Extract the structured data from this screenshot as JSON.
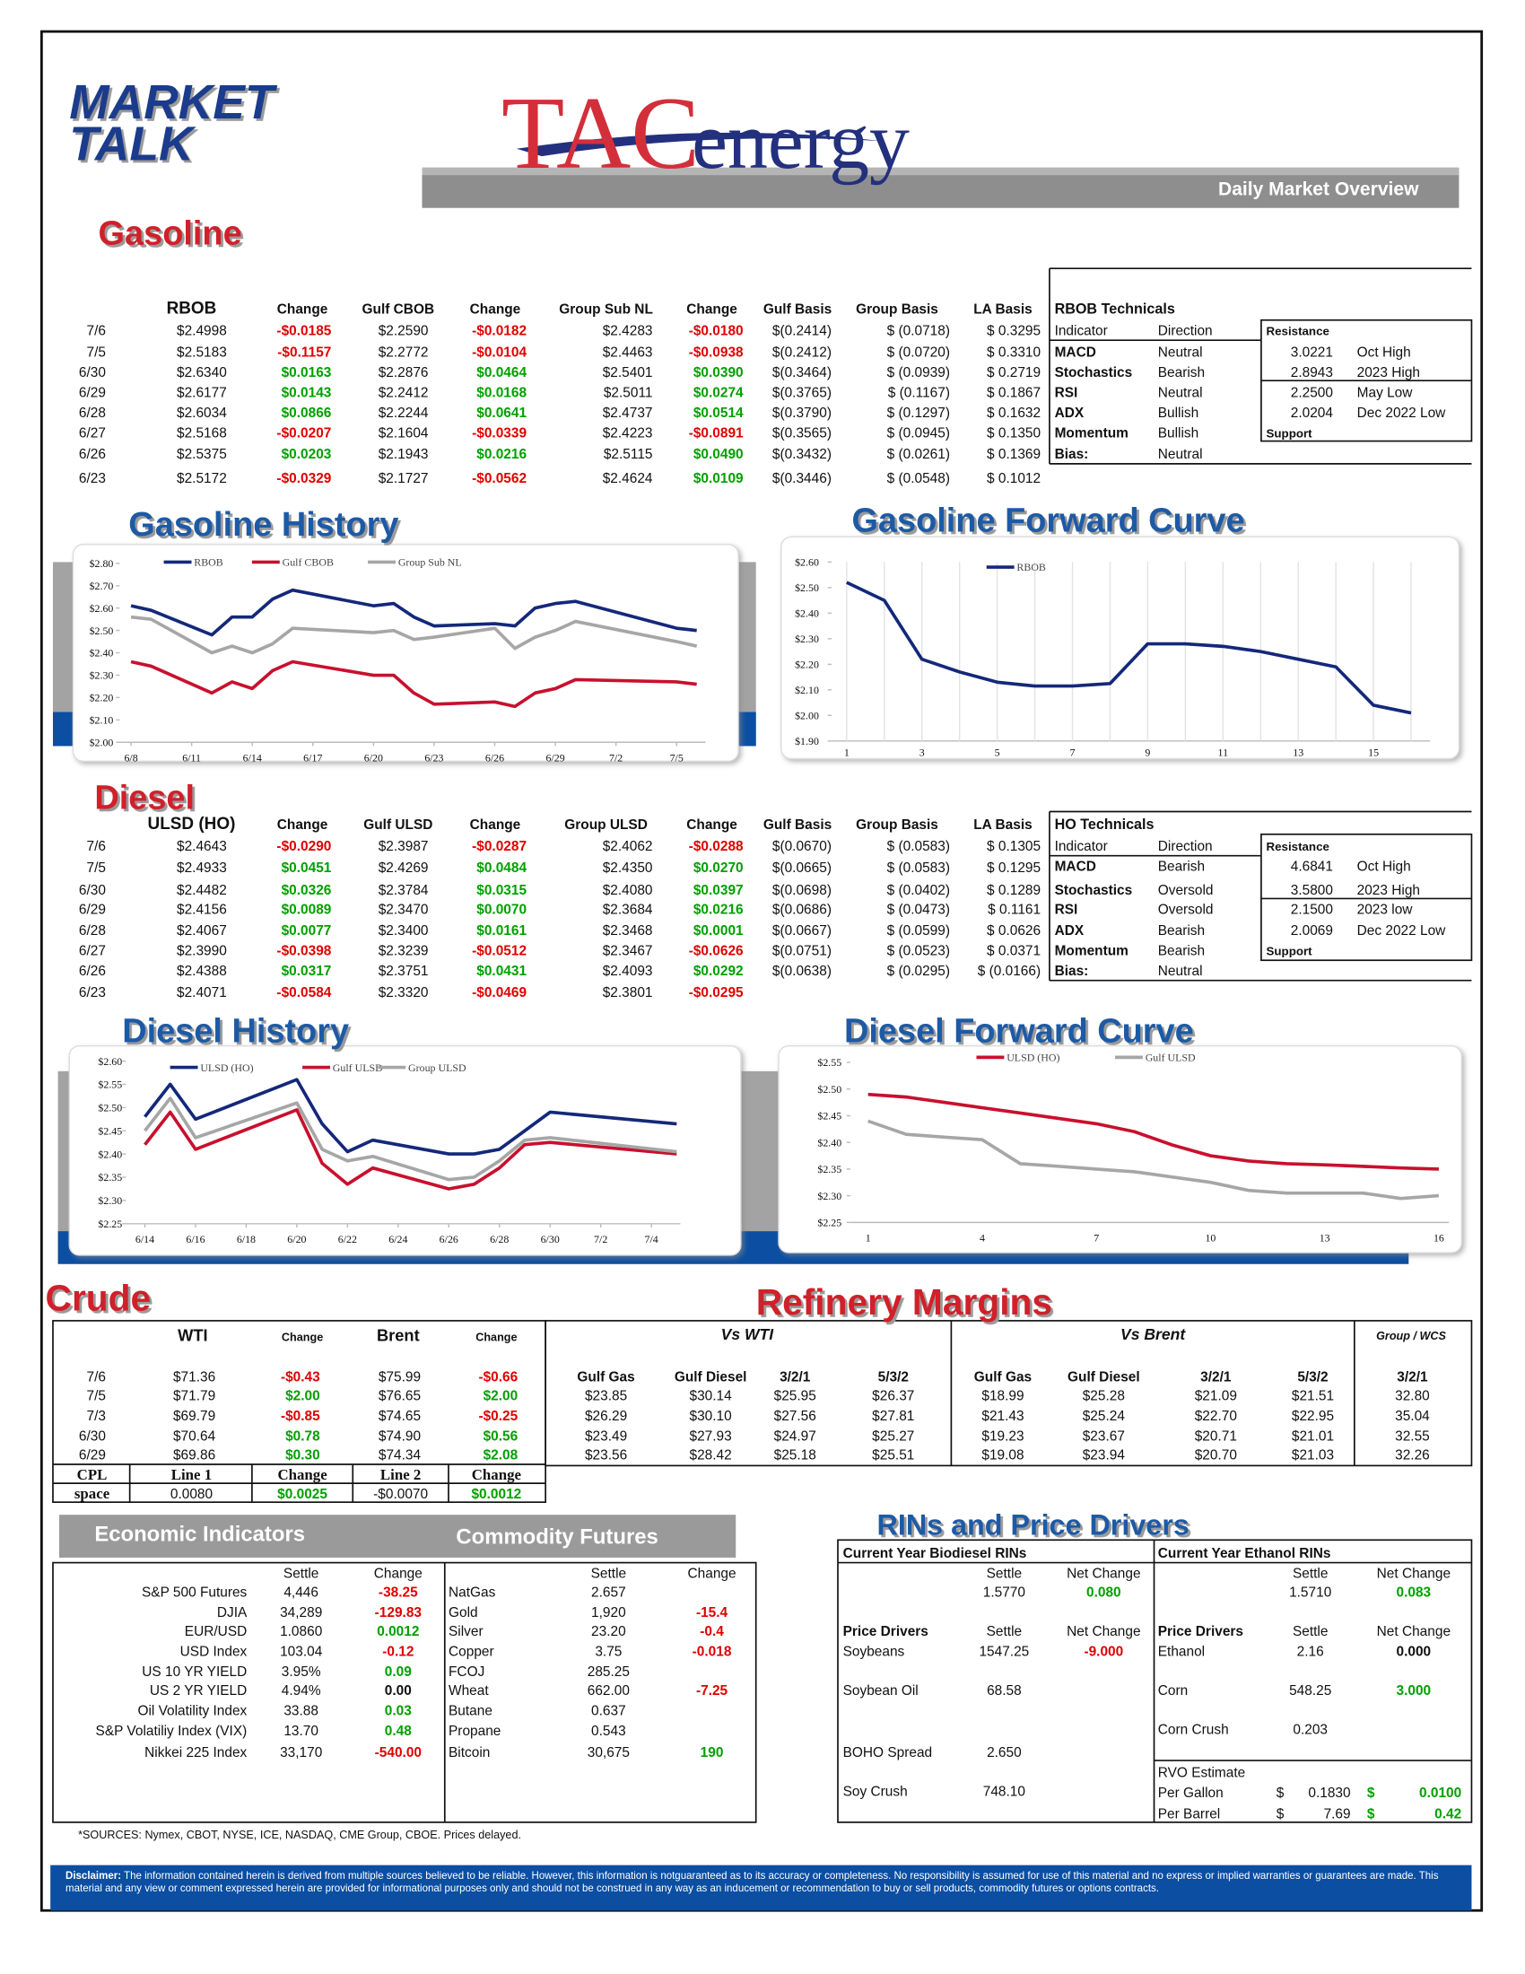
{
  "header": {
    "logo_line_1": "MARKET",
    "logo_line_2": "TALK",
    "brand_1": "TAC",
    "brand_2": "energy",
    "subtitle": "Daily Market Overview"
  },
  "gasoline": {
    "title": "Gasoline",
    "table": {
      "headers": [
        "RBOB",
        "Change",
        "Gulf CBOB",
        "Change",
        "Group Sub NL",
        "Change",
        "Gulf Basis",
        "Group Basis",
        "LA Basis"
      ],
      "rows": [
        [
          "7/6",
          "$2.4998",
          "-$0.0185",
          "$2.2590",
          "-$0.0182",
          "$2.4283",
          "-$0.0180",
          "$(0.2414)",
          "$ (0.0718)",
          "$ 0.3295"
        ],
        [
          "7/5",
          "$2.5183",
          "-$0.1157",
          "$2.2772",
          "-$0.0104",
          "$2.4463",
          "-$0.0938",
          "$(0.2412)",
          "$ (0.0720)",
          "$ 0.3310"
        ],
        [
          "6/30",
          "$2.6340",
          "$0.0163",
          "$2.2876",
          "$0.0464",
          "$2.5401",
          "$0.0390",
          "$(0.3464)",
          "$ (0.0939)",
          "$ 0.2719"
        ],
        [
          "6/29",
          "$2.6177",
          "$0.0143",
          "$2.2412",
          "$0.0168",
          "$2.5011",
          "$0.0274",
          "$(0.3765)",
          "$ (0.1167)",
          "$ 0.1867"
        ],
        [
          "6/28",
          "$2.6034",
          "$0.0866",
          "$2.2244",
          "$0.0641",
          "$2.4737",
          "$0.0514",
          "$(0.3790)",
          "$ (0.1297)",
          "$ 0.1632"
        ],
        [
          "6/27",
          "$2.5168",
          "-$0.0207",
          "$2.1604",
          "-$0.0339",
          "$2.4223",
          "-$0.0891",
          "$(0.3565)",
          "$ (0.0945)",
          "$ 0.1350"
        ],
        [
          "6/26",
          "$2.5375",
          "$0.0203",
          "$2.1943",
          "$0.0216",
          "$2.5115",
          "$0.0490",
          "$(0.3432)",
          "$ (0.0261)",
          "$ 0.1369"
        ],
        [
          "6/23",
          "$2.5172",
          "-$0.0329",
          "$2.1727",
          "-$0.0562",
          "$2.4624",
          "$0.0109",
          "$(0.3446)",
          "$ (0.0548)",
          "$ 0.1012"
        ]
      ]
    },
    "technicals": {
      "title": "RBOB Technicals",
      "headers": [
        "Indicator",
        "Direction",
        "Resistance"
      ],
      "support_label": "Support",
      "rows": [
        [
          "MACD",
          "Neutral",
          "3.0221",
          "Oct High"
        ],
        [
          "Stochastics",
          "Bearish",
          "2.8943",
          "2023 High"
        ],
        [
          "RSI",
          "Neutral",
          "2.2500",
          "May Low"
        ],
        [
          "ADX",
          "Bullish",
          "2.0204",
          "Dec 2022 Low"
        ],
        [
          "Momentum",
          "Bullish"
        ],
        [
          "Bias:",
          "Neutral"
        ]
      ]
    }
  },
  "diesel": {
    "title": "Diesel",
    "table": {
      "headers": [
        "ULSD (HO)",
        "Change",
        "Gulf ULSD",
        "Change",
        "Group ULSD",
        "Change",
        "Gulf Basis",
        "Group Basis",
        "LA Basis"
      ],
      "rows": [
        [
          "7/6",
          "$2.4643",
          "-$0.0290",
          "$2.3987",
          "-$0.0287",
          "$2.4062",
          "-$0.0288",
          "$(0.0670)",
          "$ (0.0583)",
          "$ 0.1305"
        ],
        [
          "7/5",
          "$2.4933",
          "$0.0451",
          "$2.4269",
          "$0.0484",
          "$2.4350",
          "$0.0270",
          "$(0.0665)",
          "$ (0.0583)",
          "$ 0.1295"
        ],
        [
          "6/30",
          "$2.4482",
          "$0.0326",
          "$2.3784",
          "$0.0315",
          "$2.4080",
          "$0.0397",
          "$(0.0698)",
          "$ (0.0402)",
          "$ 0.1289"
        ],
        [
          "6/29",
          "$2.4156",
          "$0.0089",
          "$2.3470",
          "$0.0070",
          "$2.3684",
          "$0.0216",
          "$(0.0686)",
          "$ (0.0473)",
          "$ 0.1161"
        ],
        [
          "6/28",
          "$2.4067",
          "$0.0077",
          "$2.3400",
          "$0.0161",
          "$2.3468",
          "$0.0001",
          "$(0.0667)",
          "$ (0.0599)",
          "$ 0.0626"
        ],
        [
          "6/27",
          "$2.3990",
          "-$0.0398",
          "$2.3239",
          "-$0.0512",
          "$2.3467",
          "-$0.0626",
          "$(0.0751)",
          "$ (0.0523)",
          "$ 0.0371"
        ],
        [
          "6/26",
          "$2.4388",
          "$0.0317",
          "$2.3751",
          "$0.0431",
          "$2.4093",
          "$0.0292",
          "$(0.0638)",
          "$ (0.0295)",
          "$ (0.0166)"
        ],
        [
          "6/23",
          "$2.4071",
          "-$0.0584",
          "$2.3320",
          "-$0.0469",
          "$2.3801",
          "-$0.0295"
        ]
      ]
    },
    "technicals": {
      "title": "HO Technicals",
      "headers": [
        "Indicator",
        "Direction",
        "Resistance"
      ],
      "support_label": "Support",
      "rows": [
        [
          "MACD",
          "Bearish",
          "4.6841",
          "Oct High"
        ],
        [
          "Stochastics",
          "Oversold",
          "3.5800",
          "2023 High"
        ],
        [
          "RSI",
          "Oversold",
          "2.1500",
          "2023 low"
        ],
        [
          "ADX",
          "Bearish",
          "2.0069",
          "Dec 2022 Low"
        ],
        [
          "Momentum",
          "Bearish"
        ],
        [
          "Bias:",
          "Neutral"
        ]
      ]
    }
  },
  "chart_data": [
    {
      "type": "line",
      "title": "Gasoline History",
      "x": [
        "6/8",
        "6/9",
        "6/12",
        "6/13",
        "6/14",
        "6/15",
        "6/16",
        "6/20",
        "6/21",
        "6/22",
        "6/23",
        "6/26",
        "6/27",
        "6/28",
        "6/29",
        "6/30",
        "7/5",
        "7/6"
      ],
      "xticks": [
        "6/8",
        "6/11",
        "6/14",
        "6/17",
        "6/20",
        "6/23",
        "6/26",
        "6/29",
        "7/2",
        "7/5"
      ],
      "series": [
        {
          "name": "RBOB",
          "color": "#14287a",
          "values": [
            2.61,
            2.59,
            2.48,
            2.56,
            2.56,
            2.64,
            2.68,
            2.61,
            2.62,
            2.56,
            2.52,
            2.53,
            2.52,
            2.6,
            2.62,
            2.63,
            2.51,
            2.5
          ]
        },
        {
          "name": "Gulf CBOB",
          "color": "#c8102e",
          "values": [
            2.36,
            2.34,
            2.22,
            2.27,
            2.24,
            2.32,
            2.36,
            2.3,
            2.3,
            2.22,
            2.17,
            2.18,
            2.16,
            2.22,
            2.24,
            2.28,
            2.27,
            2.26
          ]
        },
        {
          "name": "Group Sub NL",
          "color": "#a6a6a6",
          "values": [
            2.56,
            2.55,
            2.4,
            2.43,
            2.4,
            2.44,
            2.51,
            2.49,
            2.5,
            2.46,
            2.47,
            2.51,
            2.42,
            2.47,
            2.5,
            2.54,
            2.45,
            2.43
          ]
        }
      ],
      "ylim": [
        2.0,
        2.8
      ],
      "yticks": [
        {
          "value": 2.0,
          "label": "$2.00"
        },
        {
          "value": 2.1,
          "label": "$2.10"
        },
        {
          "value": 2.2,
          "label": "$2.20"
        },
        {
          "value": 2.3,
          "label": "$2.30"
        },
        {
          "value": 2.4,
          "label": "$2.40"
        },
        {
          "value": 2.5,
          "label": "$2.50"
        },
        {
          "value": 2.6,
          "label": "$2.60"
        },
        {
          "value": 2.7,
          "label": "$2.70"
        },
        {
          "value": 2.8,
          "label": "$2.80"
        }
      ],
      "grid": false
    },
    {
      "type": "line",
      "title": "Gasoline Forward Curve",
      "categories": [
        "1",
        null,
        "3",
        null,
        "5",
        null,
        "7",
        null,
        "9",
        null,
        "11",
        null,
        "13",
        null,
        "15",
        null
      ],
      "series": [
        {
          "name": "RBOB",
          "color": "#14287a",
          "values": [
            2.52,
            2.45,
            2.22,
            2.17,
            2.13,
            2.115,
            2.115,
            2.125,
            2.28,
            2.28,
            2.27,
            2.25,
            2.22,
            2.19,
            2.04,
            2.01
          ]
        }
      ],
      "ylim": [
        1.9,
        2.6
      ],
      "yticks": [
        {
          "value": 1.9,
          "label": "$1.90"
        },
        {
          "value": 2.0,
          "label": "$2.00"
        },
        {
          "value": 2.1,
          "label": "$2.10"
        },
        {
          "value": 2.2,
          "label": "$2.20"
        },
        {
          "value": 2.3,
          "label": "$2.30"
        },
        {
          "value": 2.4,
          "label": "$2.40"
        },
        {
          "value": 2.5,
          "label": "$2.50"
        },
        {
          "value": 2.6,
          "label": "$2.60"
        }
      ],
      "grid": true
    },
    {
      "type": "line",
      "title": "Diesel History",
      "x": [
        "6/14",
        "6/15",
        "6/16",
        "6/20",
        "6/21",
        "6/22",
        "6/23",
        "6/26",
        "6/27",
        "6/28",
        "6/29",
        "6/30",
        "7/5"
      ],
      "xticks": [
        "6/14",
        "6/16",
        "6/18",
        "6/20",
        "6/22",
        "6/24",
        "6/26",
        "6/28",
        "6/30",
        "7/2",
        "7/4"
      ],
      "series": [
        {
          "name": "ULSD (HO)",
          "color": "#14287a",
          "values": [
            2.48,
            2.55,
            2.475,
            2.56,
            2.465,
            2.405,
            2.43,
            2.4,
            2.4,
            2.41,
            2.45,
            2.49,
            2.465
          ]
        },
        {
          "name": "Gulf ULSD",
          "color": "#c8102e",
          "values": [
            2.42,
            2.49,
            2.41,
            2.495,
            2.38,
            2.335,
            2.37,
            2.325,
            2.335,
            2.37,
            2.42,
            2.425,
            2.4
          ]
        },
        {
          "name": "Group ULSD",
          "color": "#a6a6a6",
          "values": [
            2.45,
            2.52,
            2.435,
            2.51,
            2.41,
            2.385,
            2.395,
            2.345,
            2.35,
            2.385,
            2.43,
            2.435,
            2.405
          ]
        }
      ],
      "ylim": [
        2.25,
        2.6
      ],
      "yticks": [
        {
          "value": 2.25,
          "label": "$2.25"
        },
        {
          "value": 2.3,
          "label": "$2.30"
        },
        {
          "value": 2.35,
          "label": "$2.35"
        },
        {
          "value": 2.4,
          "label": "$2.40"
        },
        {
          "value": 2.45,
          "label": "$2.45"
        },
        {
          "value": 2.5,
          "label": "$2.50"
        },
        {
          "value": 2.55,
          "label": "$2.55"
        },
        {
          "value": 2.6,
          "label": "$2.60"
        }
      ],
      "grid": false
    },
    {
      "type": "line",
      "title": "Diesel Forward Curve",
      "categories": [
        "1",
        null,
        null,
        "4",
        null,
        null,
        "7",
        null,
        null,
        "10",
        null,
        null,
        "13",
        null,
        null,
        "16"
      ],
      "series": [
        {
          "name": "ULSD (HO)",
          "color": "#c8102e",
          "values": [
            2.49,
            2.485,
            2.475,
            2.465,
            2.455,
            2.445,
            2.435,
            2.42,
            2.395,
            2.375,
            2.365,
            2.36,
            2.358,
            2.355,
            2.352,
            2.35
          ]
        },
        {
          "name": "Gulf ULSD",
          "color": "#a6a6a6",
          "values": [
            2.44,
            2.415,
            2.41,
            2.405,
            2.36,
            2.355,
            2.35,
            2.345,
            2.335,
            2.325,
            2.31,
            2.305,
            2.305,
            2.305,
            2.295,
            2.3
          ]
        }
      ],
      "ylim": [
        2.25,
        2.55
      ],
      "yticks": [
        {
          "value": 2.25,
          "label": "$2.25"
        },
        {
          "value": 2.3,
          "label": "$2.30"
        },
        {
          "value": 2.35,
          "label": "$2.35"
        },
        {
          "value": 2.4,
          "label": "$2.40"
        },
        {
          "value": 2.45,
          "label": "$2.45"
        },
        {
          "value": 2.5,
          "label": "$2.50"
        },
        {
          "value": 2.55,
          "label": "$2.55"
        }
      ],
      "grid": false
    }
  ],
  "crude": {
    "title": "Crude",
    "headers": [
      "WTI",
      "Change",
      "Brent",
      "Change"
    ],
    "rows": [
      [
        "7/6",
        "$71.36",
        "-$0.43",
        "$75.99",
        "-$0.66"
      ],
      [
        "7/5",
        "$71.79",
        "$2.00",
        "$76.65",
        "$2.00"
      ],
      [
        "7/3",
        "$69.79",
        "-$0.85",
        "$74.65",
        "-$0.25"
      ],
      [
        "6/30",
        "$70.64",
        "$0.78",
        "$74.90",
        "$0.56"
      ],
      [
        "6/29",
        "$69.86",
        "$0.30",
        "$74.34",
        "$2.08"
      ]
    ],
    "cpl": [
      [
        "CPL",
        "Line 1",
        "Change",
        "Line 2",
        "Change"
      ],
      [
        "space",
        "0.0080",
        "$0.0025",
        "-$0.0070",
        "$0.0012"
      ]
    ]
  },
  "refinery": {
    "title": "Refinery Margins",
    "groups": [
      "Vs WTI",
      "Vs Brent",
      "Group / WCS"
    ],
    "headers": [
      "Gulf Gas",
      "Gulf Diesel",
      "3/2/1",
      "5/3/2",
      "Gulf Gas",
      "Gulf Diesel",
      "3/2/1",
      "5/3/2",
      "3/2/1"
    ],
    "rows": [
      [
        "$23.85",
        "$30.14",
        "$25.95",
        "$26.37",
        "$18.99",
        "$25.28",
        "$21.09",
        "$21.51",
        "32.80"
      ],
      [
        "$26.29",
        "$30.10",
        "$27.56",
        "$27.81",
        "$21.43",
        "$25.24",
        "$22.70",
        "$22.95",
        "35.04"
      ],
      [
        "$23.49",
        "$27.93",
        "$24.97",
        "$25.27",
        "$19.23",
        "$23.67",
        "$20.71",
        "$21.01",
        "32.55"
      ],
      [
        "$23.56",
        "$28.42",
        "$25.18",
        "$25.51",
        "$19.08",
        "$23.94",
        "$20.70",
        "$21.03",
        "32.26"
      ]
    ]
  },
  "economic": {
    "title": "Economic Indicators",
    "headers": [
      "Settle",
      "Change"
    ],
    "rows": [
      [
        "S&P 500 Futures",
        "4,446",
        "-38.25"
      ],
      [
        "DJIA",
        "34,289",
        "-129.83"
      ],
      [
        "EUR/USD",
        "1.0860",
        "0.0012"
      ],
      [
        "USD Index",
        "103.04",
        "-0.12"
      ],
      [
        "US 10 YR YIELD",
        "3.95%",
        "0.09"
      ],
      [
        "US 2 YR YIELD",
        "4.94%",
        "0.00"
      ],
      [
        "Oil Volatility Index",
        "33.88",
        "0.03"
      ],
      [
        "S&P Volatiliy Index (VIX)",
        "13.70",
        "0.48"
      ],
      [
        "Nikkei 225 Index",
        "33,170",
        "-540.00"
      ]
    ]
  },
  "commodity": {
    "title": "Commodity Futures",
    "headers": [
      "Settle",
      "Change"
    ],
    "rows": [
      [
        "NatGas",
        "2.657"
      ],
      [
        "Gold",
        "1,920",
        "-15.4"
      ],
      [
        "Silver",
        "23.20",
        "-0.4"
      ],
      [
        "Copper",
        "3.75",
        "-0.018"
      ],
      [
        "FCOJ",
        "285.25"
      ],
      [
        "Wheat",
        "662.00",
        "-7.25"
      ],
      [
        "Butane",
        "0.637"
      ],
      [
        "Propane",
        "0.543"
      ],
      [
        "Bitcoin",
        "30,675",
        "190"
      ]
    ]
  },
  "rins": {
    "title": "RINs and Price Drivers",
    "biodiesel": {
      "title": "Current Year Biodiesel RINs",
      "headers": [
        "Settle",
        "Net Change"
      ],
      "values": [
        "1.5770",
        "0.080"
      ]
    },
    "ethanol": {
      "title": "Current Year Ethanol RINs",
      "headers": [
        "Settle",
        "Net Change"
      ],
      "values": [
        "1.5710",
        "0.083"
      ]
    },
    "drivers_left": {
      "headers": [
        "Price Drivers",
        "Settle",
        "Net Change"
      ],
      "rows": [
        [
          "Soybeans",
          "1547.25",
          "-9.000"
        ],
        [
          "Soybean Oil",
          "68.58"
        ],
        [
          "BOHO Spread",
          "2.650"
        ],
        [
          "Soy Crush",
          "748.10"
        ]
      ]
    },
    "drivers_right": {
      "headers": [
        "Price Drivers",
        "Settle",
        "Net Change"
      ],
      "rows": [
        [
          "Ethanol",
          "2.16",
          "0.000"
        ],
        [
          "Corn",
          "548.25",
          "3.000"
        ],
        [
          "Corn Crush",
          "0.203"
        ]
      ]
    },
    "rvo": {
      "title": "RVO Estimate",
      "rows": [
        [
          "Per Gallon",
          "$",
          "0.1830",
          "$",
          "0.0100"
        ],
        [
          "Per Barrel",
          "$",
          "7.69",
          "$",
          "0.42"
        ]
      ]
    }
  },
  "sources": "*SOURCES: Nymex, CBOT, NYSE, ICE, NASDAQ, CME Group, CBOE.   Prices delayed.",
  "disclaimer": {
    "label": "Disclaimer:",
    "text": "The information contained herein is derived from multiple sources believed to be reliable.  However, this information is notguaranteed as to its accuracy or completeness. No responsibility is assumed for use of this material and no express or implied warranties or guarantees are made. This material and any view or comment expressed herein are provided for informational purposes only and should not be construed in any way as an inducement or recommendation to buy or sell products, commodity futures or options contracts."
  }
}
